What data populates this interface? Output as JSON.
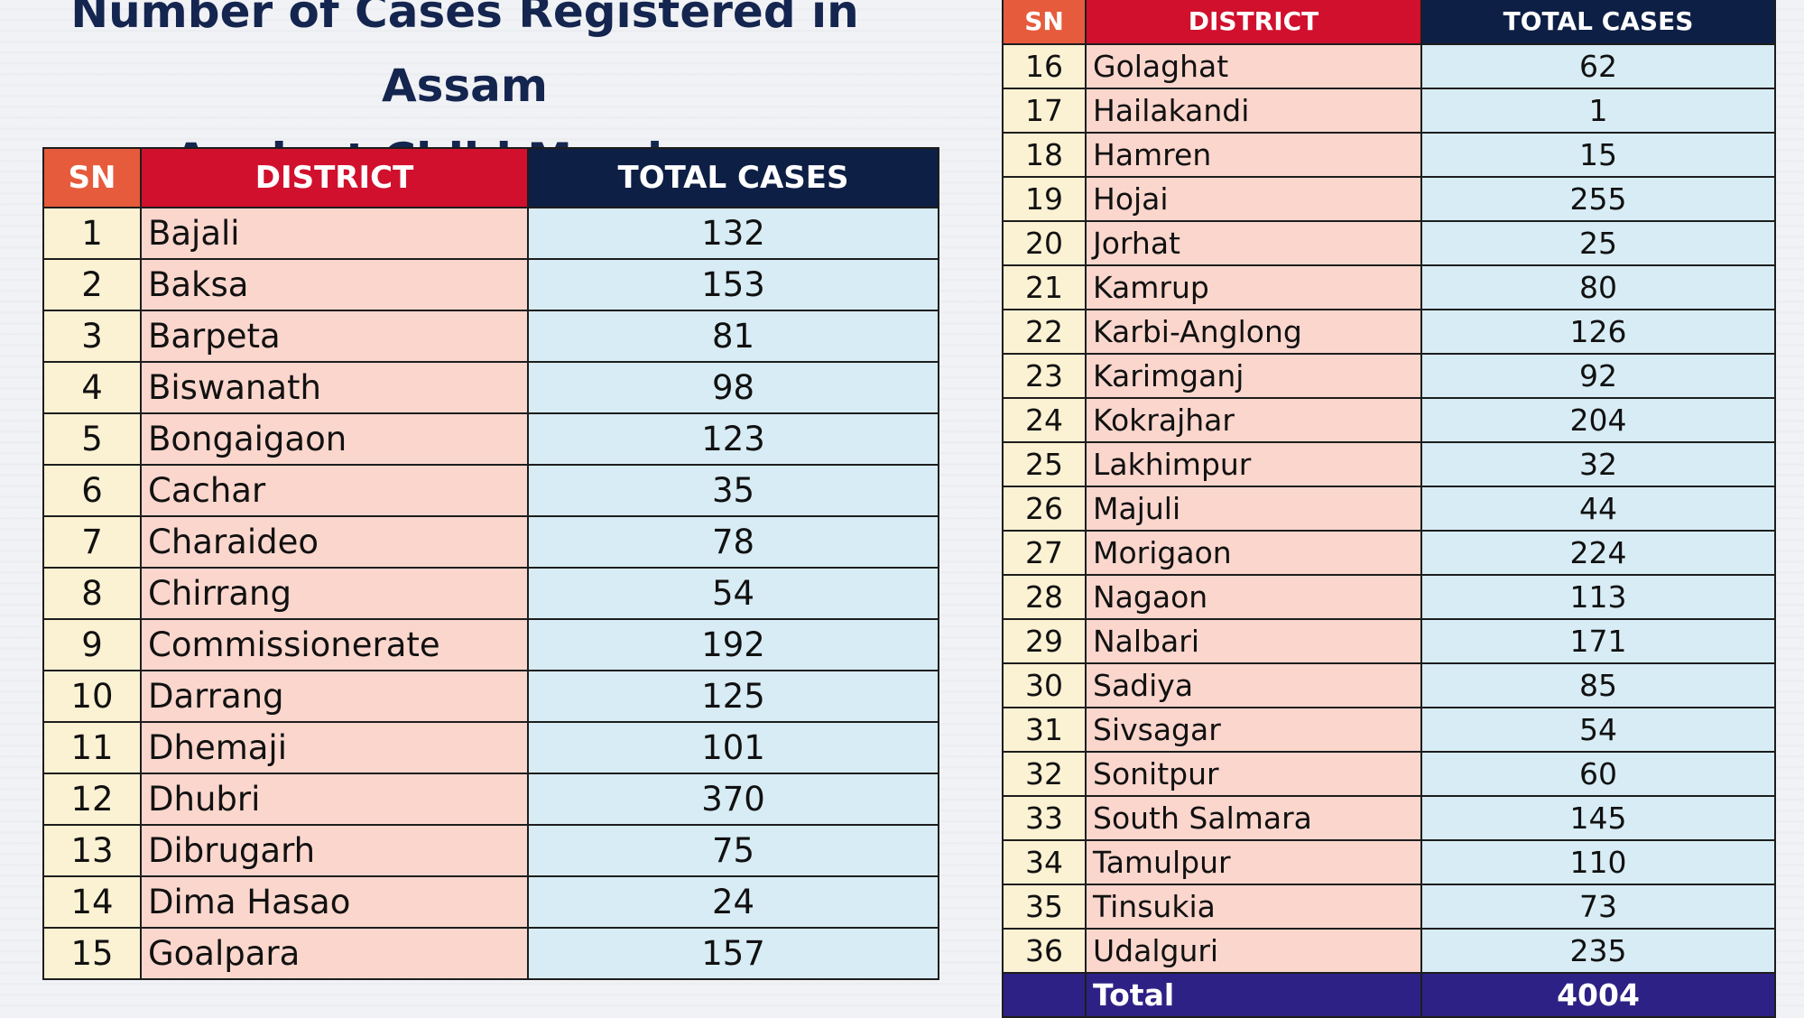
{
  "title": {
    "line1": "Number of Cases Registered in Assam",
    "line2": "Against Child Marriage"
  },
  "headers": {
    "sn": "SN",
    "district": "DISTRICT",
    "total_cases": "TOTAL CASES"
  },
  "colors": {
    "header_sn": "#e65b3c",
    "header_district": "#d1102d",
    "header_total": "#0e1f45",
    "cell_sn": "#fbf1d3",
    "cell_district": "#fad6cd",
    "cell_total": "#d7ecf4",
    "total_row": "#2e2185",
    "title": "#14254f"
  },
  "rows": [
    {
      "sn": "1",
      "district": "Bajali",
      "cases": "132"
    },
    {
      "sn": "2",
      "district": "Baksa",
      "cases": "153"
    },
    {
      "sn": "3",
      "district": "Barpeta",
      "cases": "81"
    },
    {
      "sn": "4",
      "district": "Biswanath",
      "cases": "98"
    },
    {
      "sn": "5",
      "district": "Bongaigaon",
      "cases": "123"
    },
    {
      "sn": "6",
      "district": "Cachar",
      "cases": "35"
    },
    {
      "sn": "7",
      "district": "Charaideo",
      "cases": "78"
    },
    {
      "sn": "8",
      "district": "Chirrang",
      "cases": "54"
    },
    {
      "sn": "9",
      "district": "Commissionerate",
      "cases": "192"
    },
    {
      "sn": "10",
      "district": "Darrang",
      "cases": "125"
    },
    {
      "sn": "11",
      "district": "Dhemaji",
      "cases": "101"
    },
    {
      "sn": "12",
      "district": "Dhubri",
      "cases": "370"
    },
    {
      "sn": "13",
      "district": "Dibrugarh",
      "cases": "75"
    },
    {
      "sn": "14",
      "district": "Dima Hasao",
      "cases": "24"
    },
    {
      "sn": "15",
      "district": "Goalpara",
      "cases": "157"
    },
    {
      "sn": "16",
      "district": "Golaghat",
      "cases": "62"
    },
    {
      "sn": "17",
      "district": "Hailakandi",
      "cases": "1"
    },
    {
      "sn": "18",
      "district": "Hamren",
      "cases": "15"
    },
    {
      "sn": "19",
      "district": "Hojai",
      "cases": "255"
    },
    {
      "sn": "20",
      "district": "Jorhat",
      "cases": "25"
    },
    {
      "sn": "21",
      "district": "Kamrup",
      "cases": "80"
    },
    {
      "sn": "22",
      "district": "Karbi-Anglong",
      "cases": "126"
    },
    {
      "sn": "23",
      "district": "Karimganj",
      "cases": "92"
    },
    {
      "sn": "24",
      "district": "Kokrajhar",
      "cases": "204"
    },
    {
      "sn": "25",
      "district": "Lakhimpur",
      "cases": "32"
    },
    {
      "sn": "26",
      "district": "Majuli",
      "cases": "44"
    },
    {
      "sn": "27",
      "district": "Morigaon",
      "cases": "224"
    },
    {
      "sn": "28",
      "district": "Nagaon",
      "cases": "113"
    },
    {
      "sn": "29",
      "district": "Nalbari",
      "cases": "171"
    },
    {
      "sn": "30",
      "district": "Sadiya",
      "cases": "85"
    },
    {
      "sn": "31",
      "district": "Sivsagar",
      "cases": "54"
    },
    {
      "sn": "32",
      "district": "Sonitpur",
      "cases": "60"
    },
    {
      "sn": "33",
      "district": "South Salmara",
      "cases": "145"
    },
    {
      "sn": "34",
      "district": "Tamulpur",
      "cases": "110"
    },
    {
      "sn": "35",
      "district": "Tinsukia",
      "cases": "73"
    },
    {
      "sn": "36",
      "district": "Udalguri",
      "cases": "235"
    }
  ],
  "total": {
    "label": "Total",
    "value": "4004"
  }
}
